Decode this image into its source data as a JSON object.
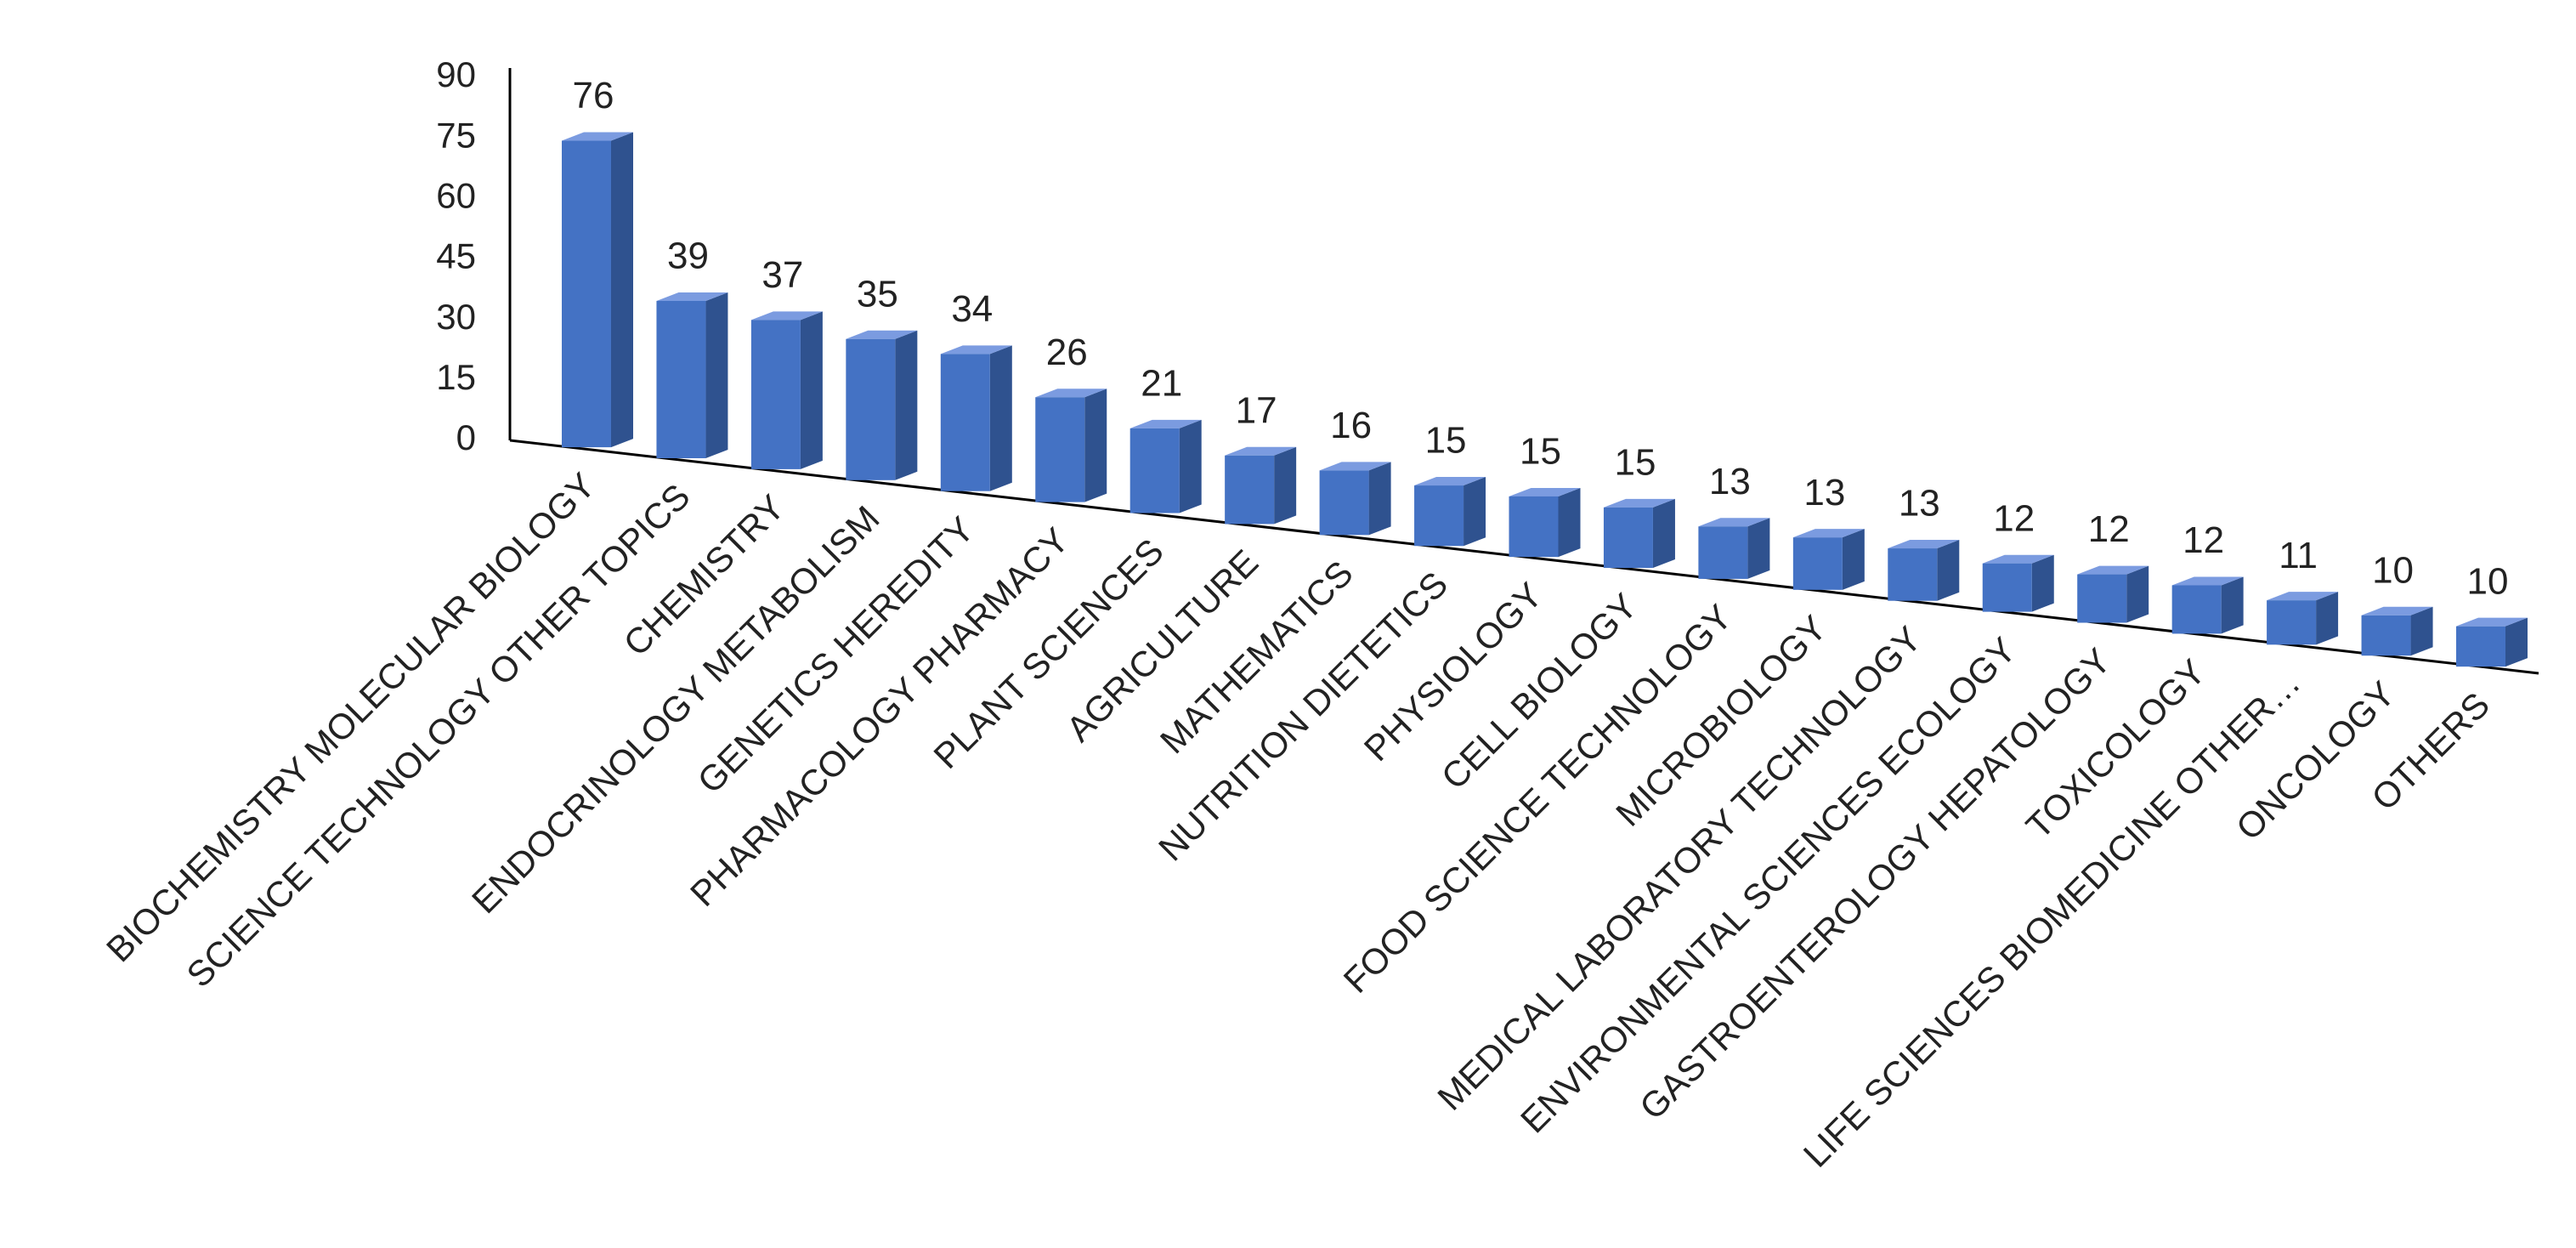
{
  "chart_data": {
    "type": "bar3d",
    "categories": [
      "BIOCHEMISTRY MOLECULAR BIOLOGY",
      "SCIENCE TECHNOLOGY OTHER TOPICS",
      "CHEMISTRY",
      "ENDOCRINOLOGY METABOLISM",
      "GENETICS HEREDITY",
      "PHARMACOLOGY PHARMACY",
      "PLANT SCIENCES",
      "AGRICULTURE",
      "MATHEMATICS",
      "NUTRITION DIETETICS",
      "PHYSIOLOGY",
      "CELL BIOLOGY",
      "FOOD SCIENCE TECHNOLOGY",
      "MICROBIOLOGY",
      "MEDICAL LABORATORY TECHNOLOGY",
      "ENVIRONMENTAL SCIENCES ECOLOGY",
      "GASTROENTEROLOGY HEPATOLOGY",
      "TOXICOLOGY",
      "LIFE SCIENCES BIOMEDICINE OTHER…",
      "ONCOLOGY",
      "OTHERS"
    ],
    "values": [
      76,
      39,
      37,
      35,
      34,
      26,
      21,
      17,
      16,
      15,
      15,
      15,
      13,
      13,
      13,
      12,
      12,
      12,
      11,
      10,
      10
    ],
    "color": "#4472c4",
    "ylim": [
      0,
      90
    ],
    "yticks": [
      0,
      15,
      30,
      45,
      60,
      75,
      90
    ],
    "grid": false
  }
}
